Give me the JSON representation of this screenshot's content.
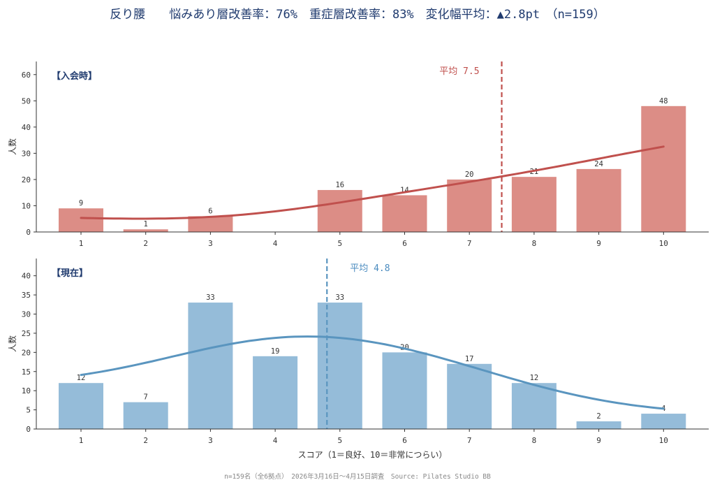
{
  "title": "反り腰　　悩みあり層改善率：76%　重症層改善率：83%　変化幅平均：▲2.8pt　（n=159）",
  "footer": "n=159名（全6拠点）　2026年3月16日〜4月15日調査　Source: Pilates Studio BB",
  "colors": {
    "title": "#1f3a6e",
    "before_bar": "#dc8d86",
    "before_line": "#c0504d",
    "after_bar": "#95bcd9",
    "after_line": "#5a95bf"
  },
  "chart_data": [
    {
      "type": "bar",
      "panel_label": "【入会時】",
      "categories": [
        "1",
        "2",
        "3",
        "4",
        "5",
        "6",
        "7",
        "8",
        "9",
        "10"
      ],
      "values": [
        9,
        1,
        6,
        0,
        16,
        14,
        20,
        21,
        24,
        48
      ],
      "value_labels": [
        "9",
        "1",
        "6",
        "",
        "16",
        "14",
        "20",
        "21",
        "24",
        "48"
      ],
      "mean": 7.5,
      "mean_label": "平均 7.5",
      "ylabel": "人数",
      "xlabel": "",
      "ylim": [
        0,
        65
      ],
      "yticks": [
        "0",
        "10",
        "20",
        "30",
        "40",
        "50",
        "60"
      ],
      "smooth_curve": true,
      "grid": false
    },
    {
      "type": "bar",
      "panel_label": "【現在】",
      "categories": [
        "1",
        "2",
        "3",
        "4",
        "5",
        "6",
        "7",
        "8",
        "9",
        "10"
      ],
      "values": [
        12,
        7,
        33,
        19,
        33,
        20,
        17,
        12,
        2,
        4
      ],
      "value_labels": [
        "12",
        "7",
        "33",
        "19",
        "33",
        "20",
        "17",
        "12",
        "2",
        "4"
      ],
      "mean": 4.8,
      "mean_label": "平均 4.8",
      "ylabel": "人数",
      "xlabel": "スコア（1＝良好、10＝非常につらい）",
      "ylim": [
        0,
        44.5
      ],
      "yticks": [
        "0",
        "5",
        "10",
        "15",
        "20",
        "25",
        "30",
        "35",
        "40"
      ],
      "smooth_curve": true,
      "grid": false
    }
  ]
}
